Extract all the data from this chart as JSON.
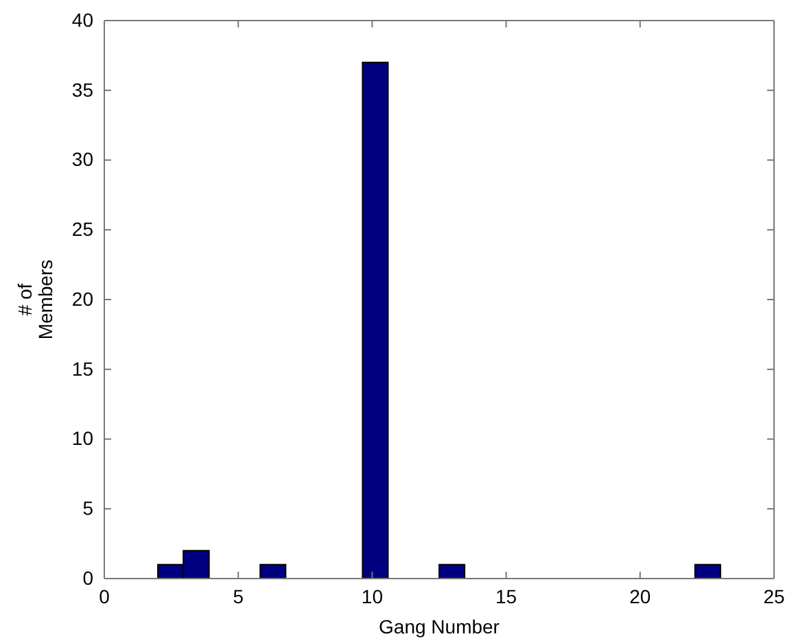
{
  "chart_data": {
    "type": "histogram",
    "xlabel": "Gang Number",
    "ylabel": "# of\nMembers",
    "bins": [
      2,
      2.95,
      3.91,
      4.86,
      5.82,
      6.77,
      7.73,
      8.68,
      9.64,
      10.59,
      11.55,
      12.5,
      13.45,
      14.41,
      15.36,
      16.32,
      17.27,
      18.23,
      19.18,
      20.14,
      21.09,
      22.05,
      23
    ],
    "values": [
      1,
      2,
      0,
      0,
      1,
      0,
      0,
      0,
      37,
      0,
      0,
      1,
      0,
      0,
      0,
      0,
      0,
      0,
      0,
      0,
      0,
      1
    ],
    "color": "#000080",
    "xlim": [
      0,
      25
    ],
    "xticks": [
      0,
      5,
      10,
      15,
      20,
      25
    ],
    "ylim": [
      0,
      40
    ],
    "yticks": [
      0,
      5,
      10,
      15,
      20,
      25,
      30,
      35,
      40
    ],
    "grid": false
  }
}
